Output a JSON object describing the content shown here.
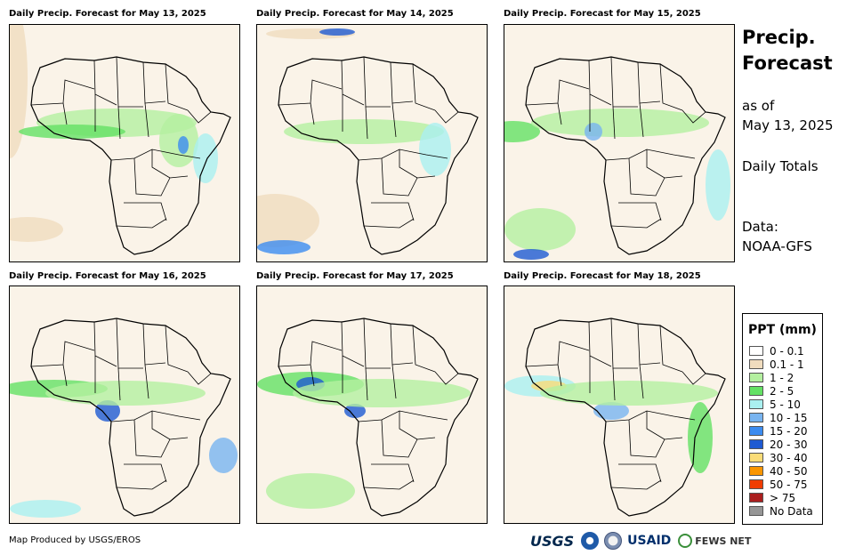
{
  "panels": [
    {
      "title": "Daily Precip. Forecast for May 13, 2025"
    },
    {
      "title": "Daily Precip. Forecast for May 14, 2025"
    },
    {
      "title": "Daily Precip. Forecast for May 15, 2025"
    },
    {
      "title": "Daily Precip. Forecast for May 16, 2025"
    },
    {
      "title": "Daily Precip. Forecast for May 17, 2025"
    },
    {
      "title": "Daily Precip. Forecast for May 18, 2025"
    }
  ],
  "side": {
    "title_line1": "Precip.",
    "title_line2": "Forecast",
    "as_of_label": "as of",
    "as_of_date": "May 13, 2025",
    "totals": "Daily Totals",
    "data_label": "Data:",
    "data_source": "NOAA-GFS"
  },
  "legend": {
    "title": "PPT (mm)",
    "items": [
      {
        "label": "0 - 0.1",
        "color": "#ffffff"
      },
      {
        "label": "0.1 - 1",
        "color": "#f0dcbe"
      },
      {
        "label": "1 - 2",
        "color": "#b4f0a0"
      },
      {
        "label": "2 - 5",
        "color": "#64e164"
      },
      {
        "label": "5 - 10",
        "color": "#aaf0f0"
      },
      {
        "label": "10 - 15",
        "color": "#78b4f0"
      },
      {
        "label": "15 - 20",
        "color": "#3c8cf0"
      },
      {
        "label": "20 - 30",
        "color": "#1e5ad2"
      },
      {
        "label": "30 - 40",
        "color": "#fadc78"
      },
      {
        "label": "40 - 50",
        "color": "#fa9600"
      },
      {
        "label": "50 - 75",
        "color": "#f03c00"
      },
      {
        "label": "> 75",
        "color": "#aa1e1e"
      },
      {
        "label": "No Data",
        "color": "#969696"
      }
    ]
  },
  "footer": {
    "credit": "Map Produced by USGS/EROS",
    "logos": [
      "USGS",
      "NOAA",
      "DOI",
      "USAID",
      "FEWS NET"
    ]
  }
}
